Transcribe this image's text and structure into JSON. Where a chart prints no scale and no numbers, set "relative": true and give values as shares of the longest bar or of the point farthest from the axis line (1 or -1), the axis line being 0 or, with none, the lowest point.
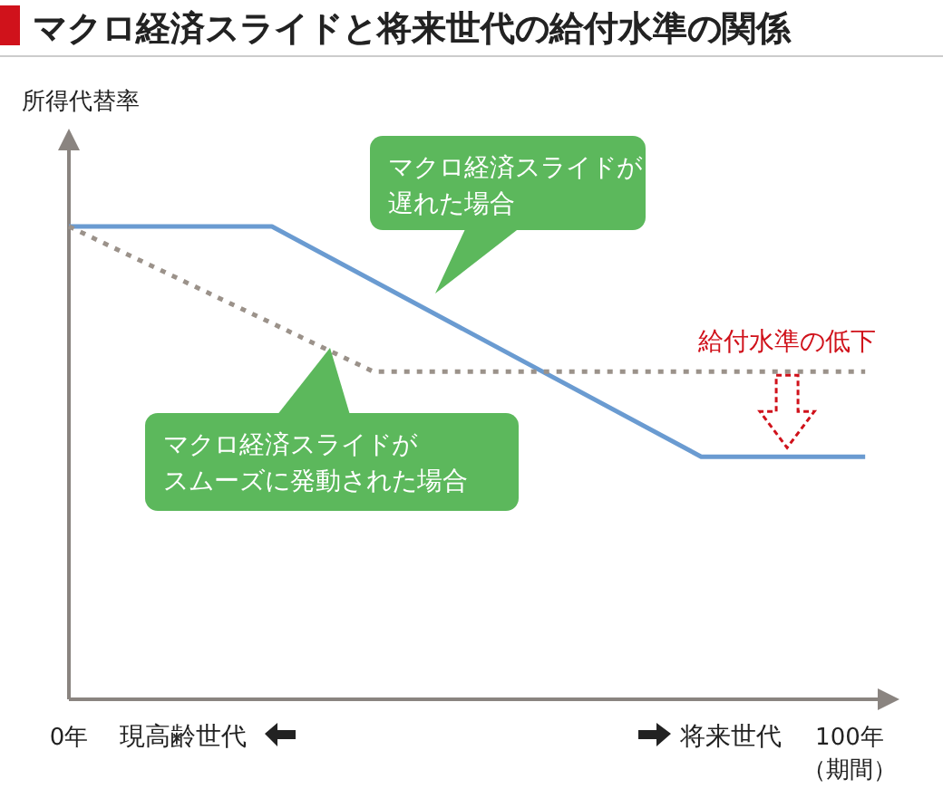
{
  "chart_data": {
    "type": "line",
    "title": "マクロ経済スライドと将来世代の給付水準の関係",
    "ylabel": "所得代替率",
    "relative": true,
    "xlim": [
      0,
      105
    ],
    "xticks": [
      {
        "value": 0,
        "label": "0年"
      },
      {
        "value": 100,
        "label": "100年（期間）"
      }
    ],
    "grid": false,
    "legend": false,
    "tick_labels": "x",
    "series": [
      {
        "name": "マクロ経済スライドが遅れた場合",
        "color": "#6a9bd1",
        "line_style": "solid",
        "x": [
          0,
          26,
          81,
          102
        ],
        "values": [
          1,
          1,
          0.513,
          0.513
        ]
      },
      {
        "name": "マクロ経済スライドがスムーズに発動された場合",
        "color": "#9b928a",
        "line_style": "dotted",
        "x": [
          0,
          39,
          102
        ],
        "values": [
          1,
          0.693,
          0.693
        ]
      }
    ],
    "annotations": [
      "現高齢世代",
      "将来世代",
      {
        "text": "給付水準の低下",
        "x": 92,
        "y": 0.693
      }
    ]
  }
}
